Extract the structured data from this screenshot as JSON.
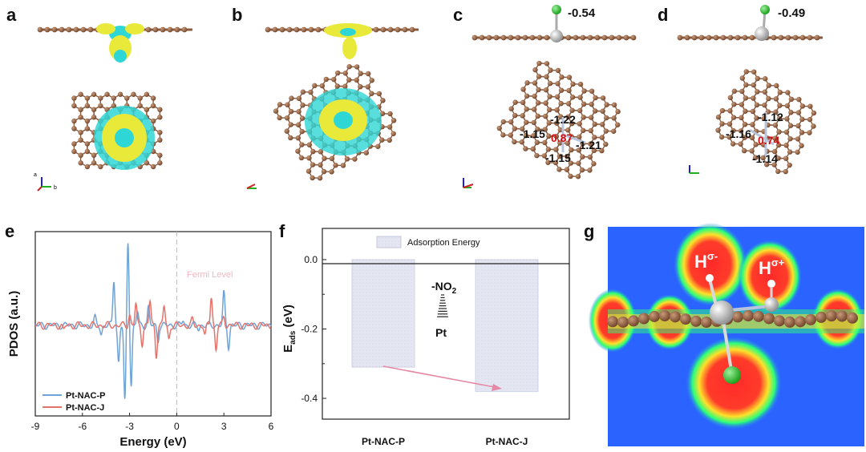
{
  "panels": {
    "a": "a",
    "b": "b",
    "c": "c",
    "d": "d",
    "e": "e",
    "f": "f",
    "g": "g"
  },
  "top_row": {
    "c_charge_cl": "-0.54",
    "d_charge_cl": "-0.49",
    "c_charges": {
      "top": "-1.22",
      "left": "-1.15",
      "center": "0.87",
      "right": "-1.21",
      "bottom": "-1.15"
    },
    "d_charges": {
      "top": "-1.12",
      "left": "-1.16",
      "center": "0.74",
      "bottom": "-1.14"
    },
    "axis_letters": {
      "a": "a",
      "b": "b"
    }
  },
  "panel_g": {
    "h_minus": "H",
    "h_minus_sup": "σ-",
    "h_plus": "H",
    "h_plus_sup": "σ+"
  },
  "colors": {
    "carbon": "#8b5a3c",
    "pt": "#c0c0c0",
    "cl": "#2fbf2f",
    "nitrogen": "#b8c4dc",
    "pdos_p": "#6fa3d6",
    "pdos_j": "#e4736b",
    "charge_yellow": "#e9e93a",
    "charge_cyan": "#2fd6d6"
  },
  "chart_data": [
    {
      "type": "line",
      "panel": "e",
      "title": "",
      "xlabel": "Energy (eV)",
      "ylabel": "PDOS (a.u.)",
      "xlim": [
        -9,
        6
      ],
      "x_ticks": [
        -9,
        -6,
        -3,
        0,
        3,
        6
      ],
      "x_tick_labels": [
        "-9",
        "-6",
        "-3",
        "0",
        "3",
        "6"
      ],
      "annotation": "Fermi Level",
      "legend_position": "bottom-left",
      "series": [
        {
          "name": "Pt-NAC-P",
          "color": "#6fa3d6",
          "peaks": [
            [
              -5.2,
              0.4
            ],
            [
              -4.8,
              -0.5
            ],
            [
              -4.0,
              2.6
            ],
            [
              -3.7,
              -2.1
            ],
            [
              -3.1,
              4.8
            ],
            [
              -2.9,
              -3.4
            ],
            [
              -3.3,
              -4.4
            ],
            [
              -2.5,
              0.8
            ],
            [
              -1.8,
              1.0
            ],
            [
              -1.2,
              -0.9
            ],
            [
              0.4,
              0.3
            ],
            [
              1.4,
              -0.2
            ],
            [
              3.0,
              1.8
            ],
            [
              3.3,
              -1.2
            ]
          ]
        },
        {
          "name": "Pt-NAC-J",
          "color": "#e4736b",
          "peaks": [
            [
              -7.2,
              -0.3
            ],
            [
              -3.0,
              0.6
            ],
            [
              -2.6,
              1.2
            ],
            [
              -2.2,
              -1.0
            ],
            [
              -1.7,
              1.4
            ],
            [
              -1.3,
              -1.7
            ],
            [
              -0.8,
              1.1
            ],
            [
              -0.5,
              -0.8
            ],
            [
              1.0,
              0.3
            ],
            [
              1.8,
              -0.6
            ],
            [
              2.2,
              1.7
            ],
            [
              2.5,
              -1.4
            ],
            [
              3.0,
              0.5
            ]
          ]
        }
      ]
    },
    {
      "type": "bar",
      "panel": "f",
      "title": "",
      "xlabel": "",
      "ylabel": "E",
      "ylabel_sub": "ads",
      "ylabel_unit": " (eV)",
      "categories": [
        "Pt-NAC-P",
        "Pt-NAC-J"
      ],
      "values": [
        -0.31,
        -0.38
      ],
      "ylim": [
        -0.46,
        0.09
      ],
      "y_ticks": [
        0.0,
        -0.2,
        -0.4
      ],
      "y_tick_labels": [
        "0.0",
        "-0.2",
        "-0.4"
      ],
      "legend": [
        "Adsorption Energy"
      ],
      "legend_position": "top-center",
      "inset_group": "-NO",
      "inset_group_sub": "2",
      "inset_metal": "Pt"
    }
  ]
}
